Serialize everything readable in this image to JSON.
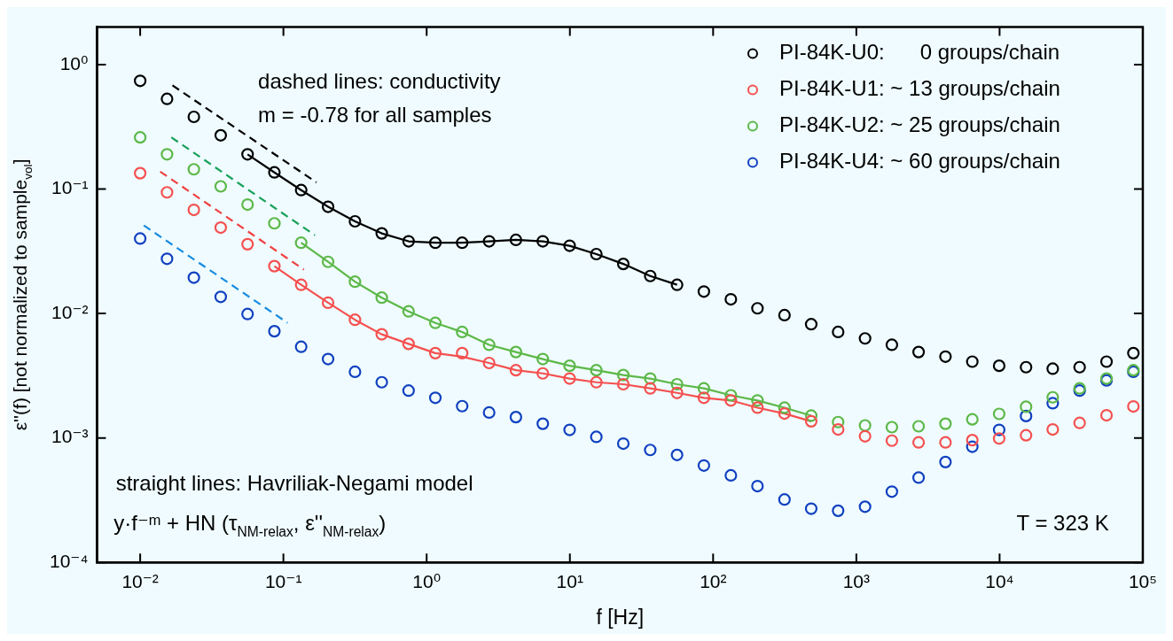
{
  "chart_data": {
    "type": "scatter",
    "xlabel": "f [Hz]",
    "ylabel": "ε''(f) [not normalized to sample$_{vol}$]",
    "log": "xy",
    "marker": "circle",
    "legend": "top right",
    "xlim": [
      0.005,
      100000
    ],
    "ylim": [
      0.0001,
      2
    ],
    "xticks": [
      {
        "value": 0.01,
        "label": "10⁻²"
      },
      {
        "value": 0.1,
        "label": "10⁻¹"
      },
      {
        "value": 1,
        "label": "10⁰"
      },
      {
        "value": 10,
        "label": "10¹"
      },
      {
        "value": 100,
        "label": "10²"
      },
      {
        "value": 1000,
        "label": "10³"
      },
      {
        "value": 10000,
        "label": "10⁴"
      },
      {
        "value": 100000,
        "label": "10⁵"
      }
    ],
    "yticks": [
      {
        "value": 0.0001,
        "label": "10⁻⁴"
      },
      {
        "value": 0.001,
        "label": "10⁻³"
      },
      {
        "value": 0.01,
        "label": "10⁻²"
      },
      {
        "value": 0.1,
        "label": "10⁻¹"
      },
      {
        "value": 1,
        "label": "10⁰"
      }
    ],
    "x": [
      0.01,
      0.0154,
      0.0237,
      0.0365,
      0.0562,
      0.0865,
      0.133,
      0.205,
      0.316,
      0.486,
      0.748,
      1.15,
      1.77,
      2.73,
      4.2,
      6.47,
      9.96,
      15.3,
      23.6,
      36.4,
      56,
      86.2,
      133,
      204,
      315,
      484,
      746,
      1150,
      1770,
      2720,
      4190,
      6450,
      9930,
      15300,
      23500,
      36200,
      55800,
      85900
    ],
    "series": [
      {
        "name": "PI-84K-U0:      0 groups/chain",
        "color": "#000000",
        "values": [
          0.74,
          0.53,
          0.38,
          0.27,
          0.19,
          0.136,
          0.098,
          0.072,
          0.055,
          0.044,
          0.038,
          0.037,
          0.037,
          0.038,
          0.039,
          0.038,
          0.035,
          0.03,
          0.025,
          0.02,
          0.017,
          0.015,
          0.013,
          0.011,
          0.0097,
          0.0082,
          0.0071,
          0.0063,
          0.0056,
          0.0049,
          0.0045,
          0.0041,
          0.0038,
          0.0037,
          0.0036,
          0.0037,
          0.0041,
          0.0048
        ]
      },
      {
        "name": "PI-84K-U1: ~ 13 groups/chain",
        "color": "#f5504f",
        "values": [
          0.134,
          0.094,
          0.068,
          0.049,
          0.036,
          0.024,
          0.017,
          0.0122,
          0.0089,
          0.0068,
          0.0057,
          0.0048,
          0.0048,
          0.004,
          0.0035,
          0.0033,
          0.003,
          0.0028,
          0.0027,
          0.0025,
          0.0023,
          0.0021,
          0.002,
          0.00175,
          0.00157,
          0.00136,
          0.00117,
          0.00103,
          0.00095,
          0.00092,
          0.00092,
          0.00096,
          0.00099,
          0.00105,
          0.00117,
          0.00132,
          0.00152,
          0.00179
        ]
      },
      {
        "name": "PI-84K-U2: ~ 25 groups/chain",
        "color": "#5cb848",
        "values": [
          0.26,
          0.19,
          0.144,
          0.105,
          0.075,
          0.053,
          0.037,
          0.026,
          0.018,
          0.0134,
          0.0104,
          0.0084,
          0.0071,
          0.0056,
          0.0049,
          0.0043,
          0.0038,
          0.0035,
          0.0032,
          0.003,
          0.0027,
          0.0025,
          0.0022,
          0.002,
          0.00175,
          0.00151,
          0.00134,
          0.00126,
          0.00122,
          0.00124,
          0.0013,
          0.00141,
          0.00156,
          0.00178,
          0.00212,
          0.0025,
          0.003,
          0.0035
        ]
      },
      {
        "name": "PI-84K-U4: ~ 60 groups/chain",
        "color": "#1040c0",
        "values": [
          0.04,
          0.0275,
          0.0194,
          0.0136,
          0.0099,
          0.0072,
          0.0054,
          0.0043,
          0.0034,
          0.0028,
          0.0024,
          0.0021,
          0.0018,
          0.0016,
          0.00147,
          0.0013,
          0.00116,
          0.00102,
          0.0009,
          0.0008,
          0.00073,
          0.0006,
          0.0005,
          0.00041,
          0.00032,
          0.00027,
          0.00026,
          0.00028,
          0.00037,
          0.00048,
          0.00064,
          0.00085,
          0.00116,
          0.0015,
          0.0019,
          0.0024,
          0.0029,
          0.0034
        ]
      },
      {
        "type": "line",
        "marker": "none",
        "line_style": "solid",
        "color": "#000000",
        "x": [
          0.0562,
          0.0865,
          0.133,
          0.205,
          0.316,
          0.486,
          0.748,
          1.15,
          1.77,
          2.73,
          4.2,
          6.47,
          9.96,
          15.3,
          23.6,
          36.4,
          56
        ],
        "values": [
          0.19,
          0.136,
          0.098,
          0.072,
          0.055,
          0.044,
          0.038,
          0.037,
          0.037,
          0.038,
          0.039,
          0.038,
          0.035,
          0.03,
          0.025,
          0.02,
          0.017
        ]
      },
      {
        "type": "line",
        "marker": "none",
        "line_style": "solid",
        "color": "#f5504f",
        "x": [
          0.0865,
          0.133,
          0.205,
          0.316,
          0.486,
          0.748,
          1.15,
          1.77,
          2.73,
          4.2,
          6.47,
          9.96,
          15.3,
          23.6,
          36.4,
          56,
          86.2,
          133,
          204,
          315,
          484
        ],
        "values": [
          0.024,
          0.017,
          0.0122,
          0.0089,
          0.0068,
          0.0057,
          0.0048,
          0.0045,
          0.004,
          0.0035,
          0.0033,
          0.003,
          0.0028,
          0.0027,
          0.0025,
          0.0023,
          0.0021,
          0.002,
          0.00175,
          0.00157,
          0.00136
        ]
      },
      {
        "type": "line",
        "marker": "none",
        "line_style": "solid",
        "color": "#5cb848",
        "x": [
          0.133,
          0.205,
          0.316,
          0.486,
          0.748,
          1.15,
          1.77,
          2.73,
          4.2,
          6.47,
          9.96,
          15.3,
          23.6,
          36.4,
          56,
          86.2,
          133,
          204,
          315,
          484
        ],
        "values": [
          0.037,
          0.026,
          0.018,
          0.0134,
          0.0104,
          0.0084,
          0.0071,
          0.0056,
          0.0049,
          0.0043,
          0.0038,
          0.0035,
          0.0032,
          0.003,
          0.0027,
          0.0025,
          0.0022,
          0.002,
          0.00175,
          0.00151
        ]
      },
      {
        "type": "line",
        "marker": "none",
        "line_style": "dashed",
        "color": "#000000",
        "x": [
          0.0168,
          0.17
        ],
        "values": [
          0.68,
          0.113
        ]
      },
      {
        "type": "line",
        "marker": "none",
        "line_style": "dashed",
        "color": "#18a058",
        "x": [
          0.0165,
          0.166
        ],
        "values": [
          0.26,
          0.0425
        ]
      },
      {
        "type": "line",
        "marker": "none",
        "line_style": "dashed",
        "color": "#f04040",
        "x": [
          0.0138,
          0.139
        ],
        "values": [
          0.138,
          0.0225
        ]
      },
      {
        "type": "line",
        "marker": "none",
        "line_style": "dashed",
        "color": "#1a8ce0",
        "x": [
          0.0106,
          0.107
        ],
        "values": [
          0.051,
          0.0084
        ]
      }
    ],
    "annotations": [
      "dashed lines: conductivity",
      "m = -0.78 for all samples",
      "straight lines: Havriliak-Negami model",
      "y·f⁻ᵐ + HN (τ$_{NM-relax}$, ε''$_{NM-relax}$)",
      "T = 323 K"
    ]
  }
}
